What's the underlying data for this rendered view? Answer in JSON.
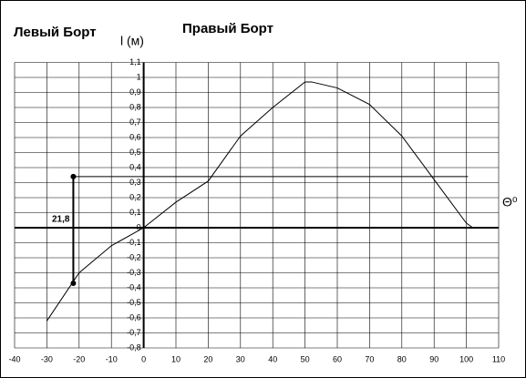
{
  "chart_data": {
    "type": "line",
    "left_title": "Левый Борт",
    "right_title": "Правый Борт",
    "y_label": "l (м)",
    "x_label": "Θ⁰",
    "x": [
      -30,
      -20,
      -10,
      0,
      10,
      20,
      30,
      40,
      50,
      52,
      60,
      70,
      80,
      90,
      100,
      102
    ],
    "series": [
      {
        "color": "#000000",
        "values": [
          -0.62,
          -0.3,
          -0.12,
          0,
          0.17,
          0.31,
          0.61,
          0.8,
          0.97,
          0.97,
          0.93,
          0.82,
          0.61,
          0.32,
          0.03,
          0
        ]
      }
    ],
    "xlim": [
      -40,
      110
    ],
    "xticks": [
      -40,
      -30,
      -20,
      -10,
      0,
      10,
      20,
      30,
      40,
      50,
      60,
      70,
      80,
      90,
      100,
      110
    ],
    "ylim": [
      -0.8,
      1.1
    ],
    "yticks": [
      {
        "value": -0.8,
        "label": "-0,8"
      },
      {
        "value": -0.7,
        "label": "-0,7"
      },
      {
        "value": -0.6,
        "label": "-0,6"
      },
      {
        "value": -0.5,
        "label": "-0,5"
      },
      {
        "value": -0.4,
        "label": "-0,4"
      },
      {
        "value": -0.3,
        "label": "-0,3"
      },
      {
        "value": -0.2,
        "label": "-0,2"
      },
      {
        "value": -0.1,
        "label": "-0,1"
      },
      0,
      {
        "value": 0.1,
        "label": "0,1"
      },
      {
        "value": 0.2,
        "label": "0,2"
      },
      {
        "value": 0.3,
        "label": "0,3"
      },
      {
        "value": 0.4,
        "label": "0,4"
      },
      {
        "value": 0.5,
        "label": "0,5"
      },
      {
        "value": 0.6,
        "label": "0,6"
      },
      {
        "value": 0.7,
        "label": "0,7"
      },
      {
        "value": 0.8,
        "label": "0,8"
      },
      {
        "value": 0.9,
        "label": "0,9"
      },
      1,
      {
        "value": 1.1,
        "label": "1,1"
      }
    ],
    "grid": true,
    "marker": {
      "x": -21.8,
      "label": "21,8",
      "y": [
        0.34,
        -0.37
      ]
    },
    "hline": {
      "y": 0.34,
      "x_end": 100.5
    }
  }
}
